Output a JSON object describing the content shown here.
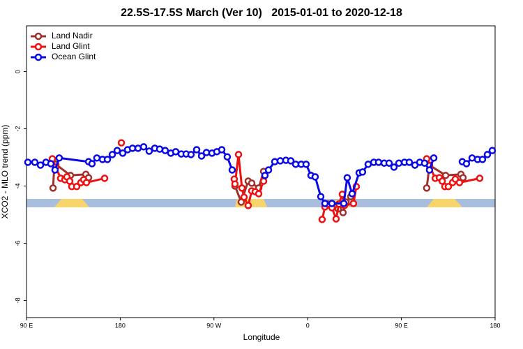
{
  "chart_data": {
    "type": "line",
    "title": "22.5S-17.5S March (Ver 10)   2015-01-01 to 2020-12-18",
    "xlabel": "Longitude",
    "ylabel": "XCO2 - MLO trend (ppm)",
    "xlim": [
      90,
      540
    ],
    "ylim": [
      -8.6,
      1.6
    ],
    "xticks": [
      {
        "value": 90,
        "label": "90 E"
      },
      180,
      {
        "value": 270,
        "label": "90 W"
      },
      {
        "value": 360,
        "label": "0"
      },
      {
        "value": 450,
        "label": "90 E"
      },
      {
        "value": 540,
        "label": "180"
      }
    ],
    "yticks": [
      0,
      -2,
      -4,
      -6,
      -8
    ],
    "legend": "top-left",
    "series": [
      {
        "name": "Land Nadir",
        "color": "#a0302c",
        "x": [
          115.5,
          116.8,
          118.1,
          132.2,
          147,
          149.6,
          null,
          290.2,
          296.2,
          302.9,
          306.3,
          313,
          317.7,
          null,
          389.3,
          394,
          396.7,
          401.4,
          null,
          474.3,
          477,
          492.5,
          507.2,
          509.2
        ],
        "values": [
          -4.07,
          -3.24,
          -3.24,
          -3.63,
          -3.59,
          -3.71,
          null,
          -4.0,
          -4.56,
          -3.83,
          -3.9,
          -4.07,
          -3.49,
          null,
          -4.8,
          -4.93,
          -4.56,
          -4.37,
          null,
          -4.07,
          -3.27,
          -3.63,
          -3.59,
          -3.71
        ]
      },
      {
        "name": "Land Glint",
        "color": "#ee1111",
        "x": [
          114.8,
          118.1,
          122.8,
          126.8,
          128.8,
          131.5,
          133.5,
          138.2,
          142.2,
          144.9,
          147.6,
          165,
          null,
          181.1,
          null,
          289.5,
          290.2,
          293.6,
          296.9,
          298.9,
          302.9,
          306.3,
          309.6,
          313,
          317.7,
          null,
          373.9,
          376.6,
          379.3,
          383.3,
          387.3,
          390,
          393.3,
          395.3,
          404,
          406.7,
          null,
          474.3,
          477,
          482.5,
          486.5,
          489.2,
          491.8,
          495.1,
          499.2,
          501.8,
          505.8,
          525.2
        ],
        "values": [
          -3.05,
          -3.34,
          -3.73,
          -3.78,
          -3.68,
          -3.83,
          -4.02,
          -4.02,
          -3.88,
          -3.78,
          -3.88,
          -3.73,
          null,
          -2.49,
          null,
          -3.76,
          -3.93,
          -2.9,
          -4.07,
          -4.39,
          -4.68,
          -4.17,
          -4.2,
          -4.27,
          -3.83,
          null,
          -5.17,
          -4.73,
          -4.63,
          -4.76,
          -5.15,
          -4.63,
          -4.29,
          -4.68,
          -4.61,
          -4.02,
          null,
          -3.05,
          -3.29,
          -3.73,
          -3.71,
          -3.83,
          -4.02,
          -4.02,
          -3.88,
          -3.76,
          -3.88,
          -3.73
        ]
      },
      {
        "name": "Ocean Glint",
        "color": "#0a0ae6",
        "x": [
          91.3,
          98,
          103.4,
          108.7,
          113.4,
          117.4,
          121.4,
          149.6,
          152.9,
          157.6,
          163,
          167.7,
          172.4,
          177.1,
          182.4,
          187.1,
          191.8,
          197.1,
          202.5,
          207.8,
          213.2,
          217.9,
          223.2,
          228.6,
          233.3,
          238.6,
          243.3,
          248,
          253.4,
          258.1,
          262.8,
          268.1,
          272.8,
          277.5,
          282.8,
          287.5,
          null,
          319,
          322.4,
          328.4,
          333.7,
          339.1,
          343.8,
          348.5,
          353.8,
          358.5,
          363.2,
          367.2,
          372.6,
          376.6,
          383.3,
          394.7,
          398,
          402.7,
          409.4,
          412.7,
          418.1,
          423.5,
          428.1,
          433.5,
          438.2,
          442.9,
          447.6,
          453,
          457.6,
          463,
          467.7,
          472.3,
          477,
          481.1,
          null,
          508.5,
          512.5,
          517.9,
          523.2,
          527.9,
          532.6,
          537.3
        ],
        "values": [
          -3.17,
          -3.17,
          -3.27,
          -3.17,
          -3.22,
          -3.44,
          -3.02,
          -3.15,
          -3.22,
          -3.02,
          -3.07,
          -3.07,
          -2.9,
          -2.76,
          -2.85,
          -2.73,
          -2.68,
          -2.68,
          -2.63,
          -2.78,
          -2.68,
          -2.71,
          -2.76,
          -2.85,
          -2.8,
          -2.88,
          -2.88,
          -2.9,
          -2.73,
          -2.95,
          -2.83,
          -2.85,
          -2.8,
          -2.73,
          -2.98,
          -3.44,
          null,
          -3.63,
          -3.44,
          -3.15,
          -3.12,
          -3.1,
          -3.12,
          -3.24,
          -3.24,
          -3.24,
          -3.63,
          -3.68,
          -4.37,
          -4.61,
          -4.61,
          -4.61,
          -3.71,
          -4.27,
          -3.54,
          -3.51,
          -3.24,
          -3.17,
          -3.17,
          -3.2,
          -3.2,
          -3.34,
          -3.2,
          -3.17,
          -3.17,
          -3.27,
          -3.17,
          -3.2,
          -3.44,
          -3.02,
          null,
          -3.15,
          -3.22,
          -3.02,
          -3.07,
          -3.07,
          -2.9,
          -2.76
        ]
      }
    ]
  }
}
